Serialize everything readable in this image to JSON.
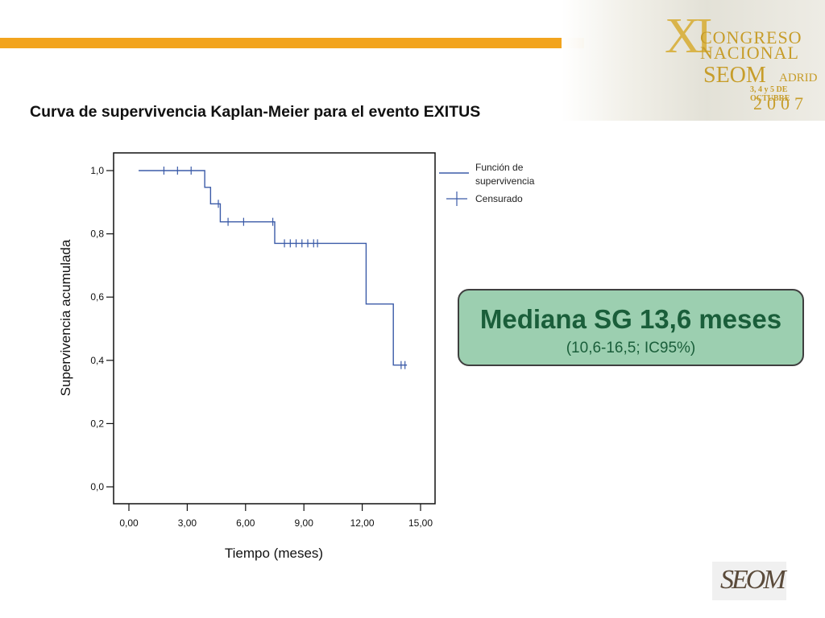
{
  "slide": {
    "title": "Curva de supervivencia Kaplan-Meier para el evento EXITUS"
  },
  "banner": {
    "roman": "XI",
    "line1": "CONGRESO",
    "line2": "NACIONAL",
    "org": "SEOM",
    "city": "ADRID",
    "dates": "3, 4 y 5 DE OCTUBRE",
    "year": "2007"
  },
  "median_box": {
    "main": "Mediana SG 13,6 meses",
    "ci": "(10,6-16,5; IC95%)"
  },
  "logo": {
    "text": "SEOM"
  },
  "colors": {
    "accent_bar": "#f2a41e",
    "curve": "#3b5ba8",
    "box_fill": "#9ccfb0",
    "box_text": "#1a5e3a"
  },
  "chart_data": {
    "type": "line",
    "title": "",
    "xlabel": "Tiempo (meses)",
    "ylabel": "Supervivencia acumulada",
    "xlim": [
      0,
      15
    ],
    "ylim": [
      0,
      1
    ],
    "x_ticks": [
      0,
      3,
      6,
      9,
      12,
      15
    ],
    "x_tick_labels": [
      "0,00",
      "3,00",
      "6,00",
      "9,00",
      "12,00",
      "15,00"
    ],
    "y_ticks": [
      0,
      0.2,
      0.4,
      0.6,
      0.8,
      1.0
    ],
    "y_tick_labels": [
      "0,0",
      "0,2",
      "0,4",
      "0,6",
      "0,8",
      "1,0"
    ],
    "grid": false,
    "legend": {
      "placement": "top-right",
      "items": [
        {
          "label_lines": [
            "Función de",
            "supervivencia"
          ],
          "symbol": "line"
        },
        {
          "label_lines": [
            "Censurado"
          ],
          "symbol": "cross"
        }
      ]
    },
    "series": [
      {
        "name": "Función de supervivencia",
        "steps": [
          {
            "x": 0.5,
            "y": 1.0
          },
          {
            "x": 3.9,
            "y": 0.947
          },
          {
            "x": 4.2,
            "y": 0.895
          },
          {
            "x": 4.7,
            "y": 0.838
          },
          {
            "x": 7.5,
            "y": 0.77
          },
          {
            "x": 12.2,
            "y": 0.578
          },
          {
            "x": 13.6,
            "y": 0.385
          }
        ],
        "end_x": 14.3,
        "censored": [
          {
            "x": 1.8,
            "y": 1.0
          },
          {
            "x": 2.5,
            "y": 1.0
          },
          {
            "x": 3.2,
            "y": 1.0
          },
          {
            "x": 4.6,
            "y": 0.895
          },
          {
            "x": 5.1,
            "y": 0.838
          },
          {
            "x": 5.9,
            "y": 0.838
          },
          {
            "x": 7.4,
            "y": 0.838
          },
          {
            "x": 8.0,
            "y": 0.77
          },
          {
            "x": 8.3,
            "y": 0.77
          },
          {
            "x": 8.6,
            "y": 0.77
          },
          {
            "x": 8.9,
            "y": 0.77
          },
          {
            "x": 9.2,
            "y": 0.77
          },
          {
            "x": 9.5,
            "y": 0.77
          },
          {
            "x": 9.7,
            "y": 0.77
          },
          {
            "x": 14.0,
            "y": 0.385
          },
          {
            "x": 14.2,
            "y": 0.385
          }
        ]
      }
    ]
  }
}
